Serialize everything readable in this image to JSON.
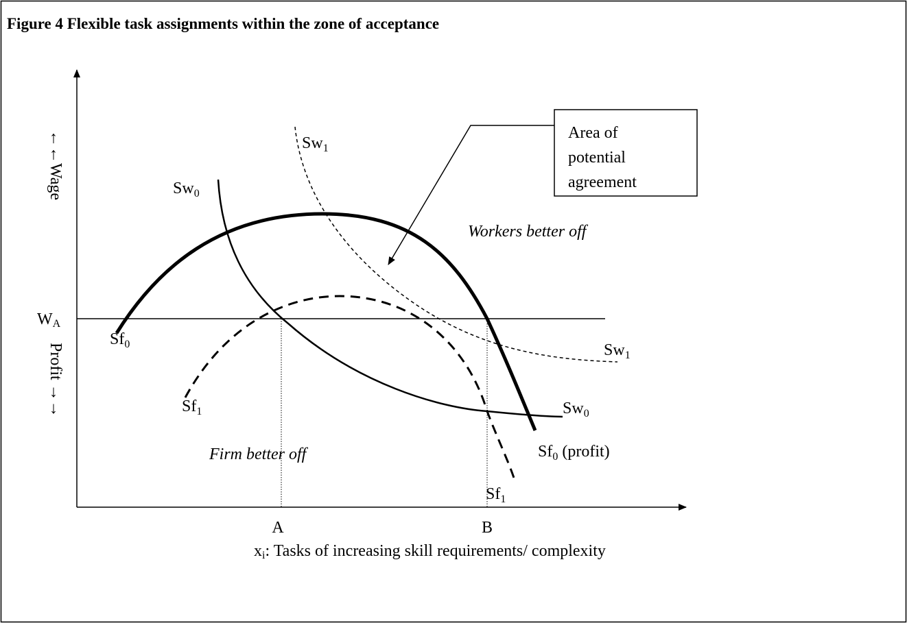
{
  "title": "Figure 4 Flexible task assignments within the zone of acceptance",
  "y_axis": {
    "upper": "←←Wage",
    "lower": "Profit →→"
  },
  "x_axis": {
    "label": {
      "base": "x",
      "sub": "i",
      "rest": ": Tasks of increasing skill requirements/ complexity"
    },
    "points": [
      "A",
      "B"
    ]
  },
  "wage_level": {
    "base": "W",
    "sub": "A"
  },
  "curves": {
    "sw1_top": {
      "base": "Sw",
      "sub": "1"
    },
    "sw0_top": {
      "base": "Sw",
      "sub": "0"
    },
    "sf0_left": {
      "base": "Sf",
      "sub": "0"
    },
    "sf1_left": {
      "base": "Sf",
      "sub": "1"
    },
    "sw1_right": {
      "base": "Sw",
      "sub": "1"
    },
    "sw0_right": {
      "base": "Sw",
      "sub": "0"
    },
    "sf0_right": {
      "base": "Sf",
      "sub": "0",
      "rest": " (profit)"
    },
    "sf1_bottom": {
      "base": "Sf",
      "sub": "1"
    }
  },
  "callout": [
    "Area of",
    "potential",
    "agreement"
  ],
  "regions": {
    "workers": "Workers better off",
    "firm": "Firm better off"
  }
}
